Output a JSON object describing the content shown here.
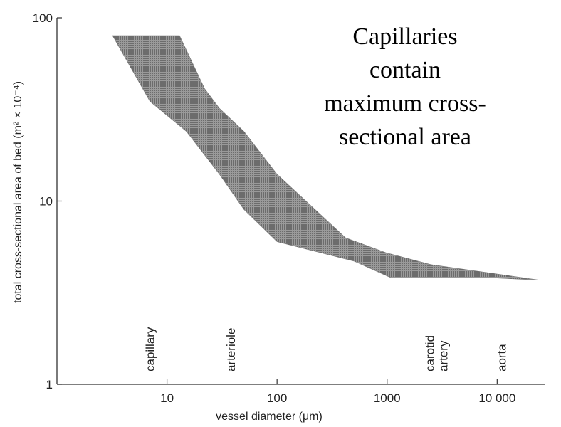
{
  "chart_data": {
    "type": "area",
    "title": "",
    "xlabel": "vessel diameter (μm)",
    "ylabel": "total cross-sectional area of bed (m² × 10⁻⁴)",
    "x_scale": "log",
    "y_scale": "log",
    "xlim": [
      1,
      27000
    ],
    "ylim": [
      1,
      100
    ],
    "x_ticks": [
      {
        "value": 10,
        "label": "10"
      },
      {
        "value": 100,
        "label": "100"
      },
      {
        "value": 1000,
        "label": "1000"
      },
      {
        "value": 10000,
        "label": "10 000"
      }
    ],
    "y_ticks": [
      {
        "value": 1,
        "label": "1"
      },
      {
        "value": 10,
        "label": "10"
      },
      {
        "value": 100,
        "label": "100"
      }
    ],
    "band": {
      "upper": [
        {
          "x": 3.2,
          "y": 80
        },
        {
          "x": 13,
          "y": 80
        },
        {
          "x": 22,
          "y": 41
        },
        {
          "x": 30,
          "y": 32
        },
        {
          "x": 50,
          "y": 24
        },
        {
          "x": 100,
          "y": 14
        },
        {
          "x": 420,
          "y": 6.3
        },
        {
          "x": 1000,
          "y": 5.2
        },
        {
          "x": 2500,
          "y": 4.5
        },
        {
          "x": 10000,
          "y": 4.0
        },
        {
          "x": 24500,
          "y": 3.7
        }
      ],
      "lower": [
        {
          "x": 24500,
          "y": 3.7
        },
        {
          "x": 10000,
          "y": 3.8
        },
        {
          "x": 3000,
          "y": 3.8
        },
        {
          "x": 1100,
          "y": 3.8
        },
        {
          "x": 500,
          "y": 4.7
        },
        {
          "x": 100,
          "y": 6.0
        },
        {
          "x": 50,
          "y": 9.0
        },
        {
          "x": 30,
          "y": 14
        },
        {
          "x": 15,
          "y": 24
        },
        {
          "x": 7,
          "y": 35
        },
        {
          "x": 3.2,
          "y": 80
        }
      ],
      "fill": "#8a8a8a"
    },
    "vessel_labels": [
      {
        "lines": [
          "capillary"
        ],
        "x": 7
      },
      {
        "lines": [
          "arteriole"
        ],
        "x": 38
      },
      {
        "lines": [
          "carotid",
          "artery"
        ],
        "x": 2800
      },
      {
        "lines": [
          "aorta"
        ],
        "x": 11000
      }
    ],
    "annotation": {
      "lines": [
        "Capillaries",
        "contain",
        "maximum cross-",
        "sectional area"
      ]
    }
  }
}
